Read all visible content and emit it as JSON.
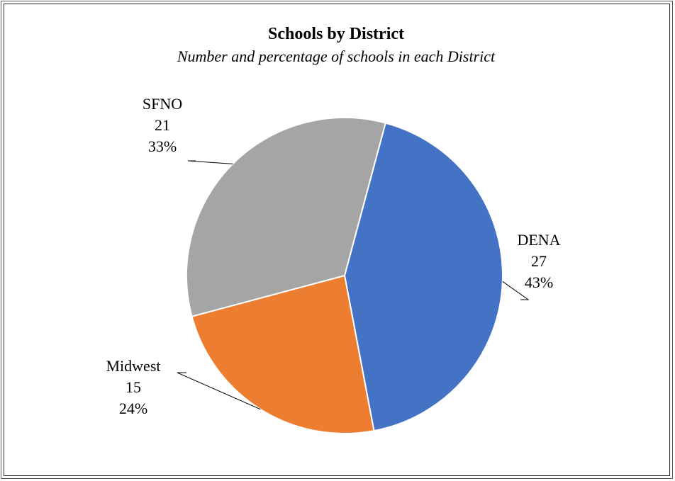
{
  "chart_data": {
    "type": "pie",
    "title": "Schools by District",
    "subtitle": "Number and percentage of schools in each District",
    "slices": [
      {
        "name": "DENA",
        "value": 27,
        "percent": "43%",
        "color": "#4472C4"
      },
      {
        "name": "Midwest",
        "value": 15,
        "percent": "24%",
        "color": "#ED7D31"
      },
      {
        "name": "SFNO",
        "value": 21,
        "percent": "33%",
        "color": "#A5A5A5"
      }
    ],
    "start_angle_deg": 15,
    "direction": "clockwise",
    "legend": "none",
    "data_labels": "name, value, percent"
  }
}
